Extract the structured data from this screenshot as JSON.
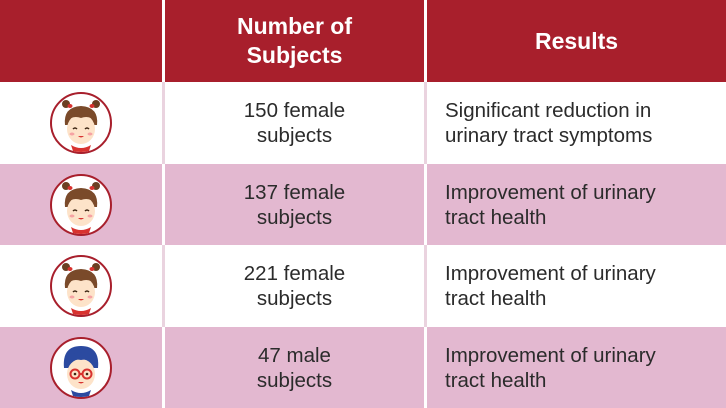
{
  "header": {
    "subjects_label": "Number of\nSubjects",
    "results_label": "Results"
  },
  "colors": {
    "header_bg": "#a81f2c",
    "row_alt_bg": "#e3b8d0",
    "avatar_ring": "#a81f2c"
  },
  "rows": [
    {
      "avatar_icon": "girl-avatar-icon",
      "subjects": "150 female\nsubjects",
      "result": "Significant reduction in\nurinary tract symptoms"
    },
    {
      "avatar_icon": "girl-avatar-icon",
      "subjects": "137 female\nsubjects",
      "result": "Improvement of urinary\ntract health"
    },
    {
      "avatar_icon": "girl-avatar-icon",
      "subjects": "221 female\nsubjects",
      "result": "Improvement of urinary\ntract health"
    },
    {
      "avatar_icon": "boy-avatar-icon",
      "subjects": "47 male\nsubjects",
      "result": "Improvement of urinary\ntract health"
    }
  ]
}
